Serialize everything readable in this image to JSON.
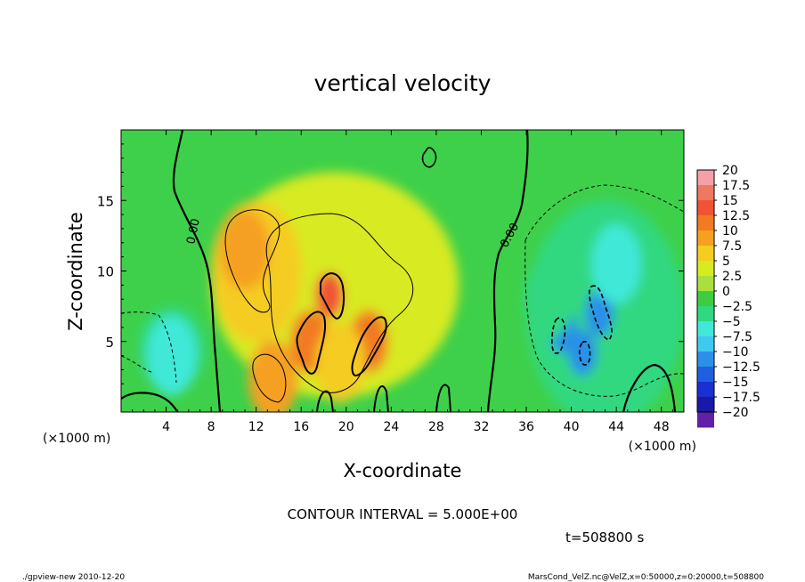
{
  "chart_data": {
    "type": "heatmap",
    "title": "vertical velocity",
    "xlabel": "X-coordinate",
    "ylabel": "Z-coordinate",
    "x_unit_left": "(×1000 m)",
    "x_unit_right": "(×1000 m)",
    "xlim": [
      0,
      50
    ],
    "ylim": [
      0,
      20
    ],
    "x_ticks": [
      4,
      8,
      12,
      16,
      20,
      24,
      28,
      32,
      36,
      40,
      44,
      48
    ],
    "x_tick_labels": [
      "4",
      "8",
      "12",
      "16",
      "20",
      "24",
      "28",
      "32",
      "36",
      "40",
      "44",
      "48"
    ],
    "y_ticks": [
      5,
      10,
      15
    ],
    "y_tick_labels": [
      "5",
      "10",
      "15"
    ],
    "zero_contour_labels": [
      "0.00",
      "0.00"
    ],
    "contour_interval_text": "CONTOUR INTERVAL = 5.000E+00",
    "time_text": "t=508800 s",
    "footer_left": "./gpview-new 2010-12-20",
    "footer_right": "MarsCond_VelZ.nc@VelZ,x=0:50000,z=0:20000,t=508800",
    "colorbar": {
      "labels": [
        "20",
        "17.5",
        "15",
        "12.5",
        "10",
        "7.5",
        "5",
        "2.5",
        "0",
        "-2.5",
        "-5",
        "-7.5",
        "-10",
        "-12.5",
        "-15",
        "-17.5",
        "-20"
      ],
      "colors": [
        "#f5a0a8",
        "#f07860",
        "#ef5535",
        "#f27a20",
        "#f5a020",
        "#f5cc20",
        "#d8ea20",
        "#a8e040",
        "#40cc40",
        "#30d880",
        "#40e8d8",
        "#40c8f0",
        "#2c90e8",
        "#2060e0",
        "#1a30d0",
        "#1a18a8",
        "#6020a8"
      ]
    },
    "features": [
      {
        "sign": "positive",
        "x": 18.5,
        "z": 8.3,
        "value": 12.5
      },
      {
        "sign": "positive",
        "x": 16.8,
        "z": 5.0,
        "value": 10
      },
      {
        "sign": "positive",
        "x": 22.0,
        "z": 5.0,
        "value": 10
      },
      {
        "sign": "positive",
        "x": 11.0,
        "z": 11.5,
        "value": 7.5
      },
      {
        "sign": "positive",
        "x": 13.5,
        "z": 2.3,
        "value": 7.5
      },
      {
        "sign": "positive",
        "x": 19.5,
        "z": 3.5,
        "value": 5
      },
      {
        "sign": "negative",
        "x": 42.5,
        "z": 7.0,
        "value": -12.5
      },
      {
        "sign": "negative",
        "x": 39.3,
        "z": 5.8,
        "value": -12.5
      },
      {
        "sign": "negative",
        "x": 41.0,
        "z": 4.2,
        "value": -12.5
      },
      {
        "sign": "negative",
        "x": 44.0,
        "z": 10.5,
        "value": -7.5
      },
      {
        "sign": "negative",
        "x": 4.5,
        "z": 4.0,
        "value": -7.5
      },
      {
        "sign": "negative",
        "x": 38.0,
        "z": 8.0,
        "value": -5
      }
    ]
  }
}
